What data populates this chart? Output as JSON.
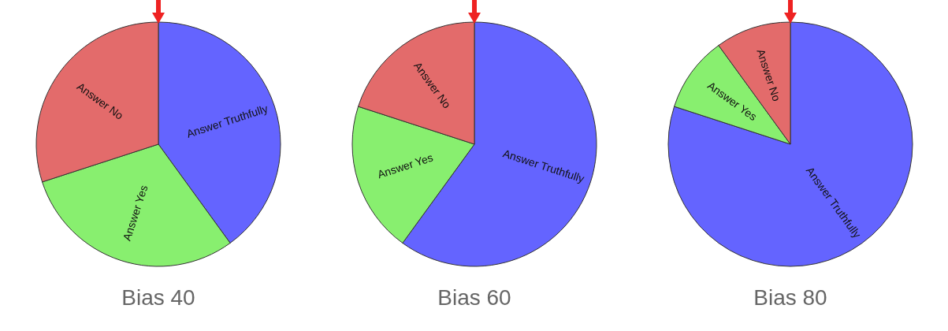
{
  "chart_data": [
    {
      "type": "pie",
      "title": "Bias 40",
      "categories": [
        "Answer Truthfully",
        "Answer Yes",
        "Answer No"
      ],
      "values": [
        40,
        30,
        30
      ],
      "colors": [
        "#6464ff",
        "#88ef6f",
        "#e36b6b"
      ]
    },
    {
      "type": "pie",
      "title": "Bias 60",
      "categories": [
        "Answer Truthfully",
        "Answer Yes",
        "Answer No"
      ],
      "values": [
        60,
        20,
        20
      ],
      "colors": [
        "#6464ff",
        "#88ef6f",
        "#e36b6b"
      ]
    },
    {
      "type": "pie",
      "title": "Bias 80",
      "categories": [
        "Answer Truthfully",
        "Answer Yes",
        "Answer No"
      ],
      "values": [
        80,
        10,
        10
      ],
      "colors": [
        "#6464ff",
        "#88ef6f",
        "#e36b6b"
      ]
    }
  ]
}
